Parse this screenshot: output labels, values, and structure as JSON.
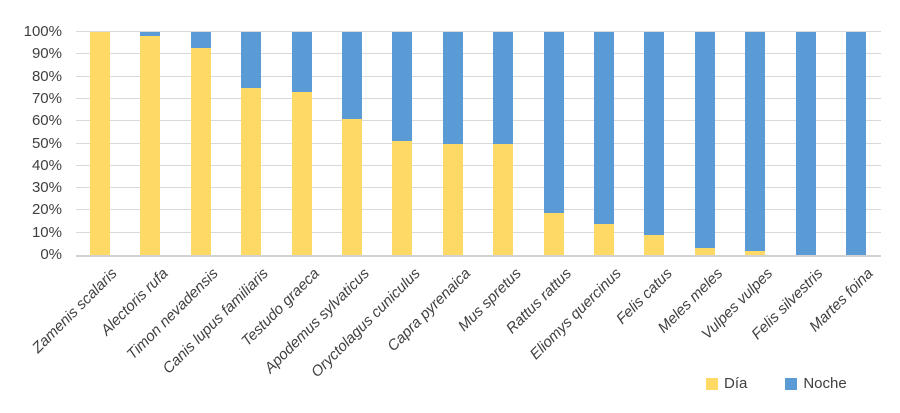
{
  "chart_data": {
    "type": "bar",
    "subtype": "stacked-100-percent",
    "title": "",
    "xlabel": "",
    "ylabel": "",
    "ylim": [
      0,
      100
    ],
    "grid": "horizontal",
    "legend_position": "bottom-right",
    "categories": [
      "Zamenis scalaris",
      "Alectoris rufa",
      "Timon nevadensis",
      "Canis lupus familiaris",
      "Testudo graeca",
      "Apodemus sylvaticus",
      "Oryctolagus cuniculus",
      "Capra pyrenaica",
      "Mus spretus",
      "Rattus rattus",
      "Eliomys quercinus",
      "Felis catus",
      "Meles meles",
      "Vulpes vulpes",
      "Felis silvestris",
      "Martes foina"
    ],
    "series": [
      {
        "name": "Día",
        "color": "#FFD966",
        "values": [
          100,
          98,
          93,
          75,
          73,
          61,
          51,
          50,
          50,
          19,
          14,
          9,
          3,
          2,
          0,
          0
        ]
      },
      {
        "name": "Noche",
        "color": "#5B9BD5",
        "values": [
          0,
          2,
          7,
          25,
          27,
          39,
          49,
          50,
          50,
          81,
          86,
          91,
          97,
          98,
          100,
          100
        ]
      }
    ],
    "yticks": [
      "0%",
      "10%",
      "20%",
      "30%",
      "40%",
      "50%",
      "60%",
      "70%",
      "80%",
      "90%",
      "100%"
    ]
  },
  "legend": {
    "items": [
      {
        "label": "Día",
        "color": "#FFD966"
      },
      {
        "label": "Noche",
        "color": "#5B9BD5"
      }
    ]
  },
  "style": {
    "gridline_color": "#D9D9D9",
    "axis_line_color": "#D2D2D2",
    "text_color": "#404040"
  }
}
